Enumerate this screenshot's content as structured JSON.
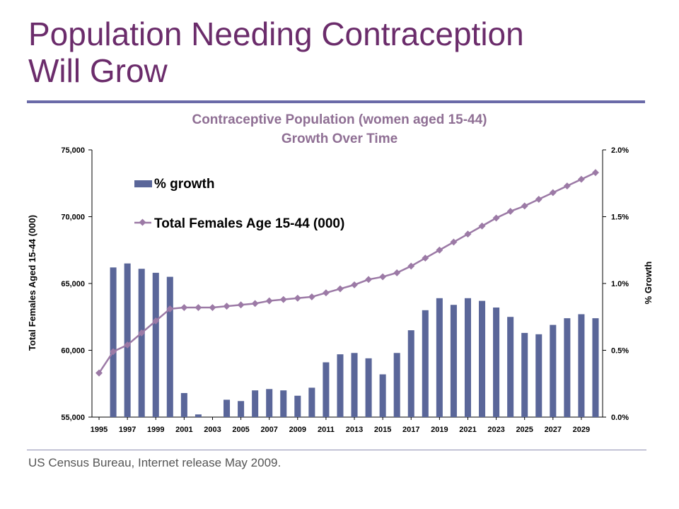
{
  "slide": {
    "title_line1": "Population Needing Contraception",
    "title_line2": "Will Grow",
    "source": "US Census Bureau, Internet release May 2009."
  },
  "colors": {
    "title": "#6b2c6b",
    "bar": "#5a6699",
    "line": "#9c7aa6",
    "chart_title": "#8f6f94"
  },
  "chart_data": {
    "type": "bar+line",
    "title_line1": "Contraceptive Population (women aged 15-44)",
    "title_line2": "Growth Over Time",
    "ylabel": "Total Females Aged 15-44 (000)",
    "y2label": "% Growth",
    "ylim": [
      55000,
      75000
    ],
    "y2lim": [
      0,
      2
    ],
    "yticks": [
      "55,000",
      "60,000",
      "65,000",
      "70,000",
      "75,000"
    ],
    "y2ticks": [
      "0.0%",
      "0.5%",
      "1.0%",
      "1.5%",
      "2.0%"
    ],
    "xticks": [
      "1995",
      "1997",
      "1999",
      "2001",
      "2003",
      "2005",
      "2007",
      "2009",
      "2011",
      "2013",
      "2015",
      "2017",
      "2019",
      "2021",
      "2023",
      "2025",
      "2027",
      "2029"
    ],
    "x": [
      1995,
      1996,
      1997,
      1998,
      1999,
      2000,
      2001,
      2002,
      2003,
      2004,
      2005,
      2006,
      2007,
      2008,
      2009,
      2010,
      2011,
      2012,
      2013,
      2014,
      2015,
      2016,
      2017,
      2018,
      2019,
      2020,
      2021,
      2022,
      2023,
      2024,
      2025,
      2026,
      2027,
      2028,
      2029,
      2030
    ],
    "series": [
      {
        "name": "% growth",
        "kind": "bar",
        "axis": "right",
        "values": [
          null,
          1.12,
          1.15,
          1.11,
          1.08,
          1.05,
          0.18,
          0.02,
          null,
          0.13,
          0.12,
          0.2,
          0.21,
          0.2,
          0.16,
          0.22,
          0.41,
          0.47,
          0.48,
          0.44,
          0.32,
          0.48,
          0.65,
          0.8,
          0.89,
          0.84,
          0.89,
          0.87,
          0.82,
          0.75,
          0.63,
          0.62,
          0.69,
          0.74,
          0.77,
          0.74
        ]
      },
      {
        "name": "Total Females Age 15-44 (000)",
        "kind": "line",
        "axis": "left",
        "values": [
          58300,
          59900,
          60400,
          61300,
          62200,
          63100,
          63200,
          63200,
          63200,
          63300,
          63400,
          63500,
          63700,
          63800,
          63900,
          64000,
          64300,
          64600,
          64900,
          65300,
          65500,
          65800,
          66300,
          66900,
          67500,
          68100,
          68700,
          69300,
          69900,
          70400,
          70800,
          71300,
          71800,
          72300,
          72800,
          73300
        ]
      }
    ],
    "legend_placement": "top-left",
    "grid": false
  }
}
